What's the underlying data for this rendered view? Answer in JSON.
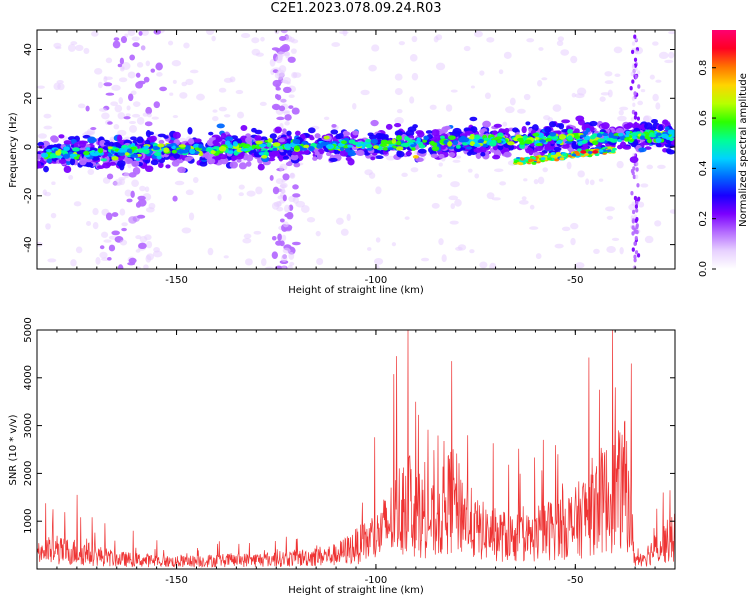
{
  "title": "C2E1.2023.078.09.24.R03",
  "chart_data": [
    {
      "type": "heatmap",
      "xlabel": "Height of straight line (km)",
      "ylabel": "Frequency (Hz)",
      "xlim": [
        -185,
        -25
      ],
      "ylim": [
        -50,
        48
      ],
      "xticks": [
        -150,
        -100,
        -50
      ],
      "yticks": [
        -40,
        -20,
        0,
        20,
        40
      ],
      "colorbar": {
        "label": "Normalized spectral amplitude",
        "range": [
          0.0,
          0.95
        ],
        "ticks": [
          "0.0",
          "0.2",
          "0.4",
          "0.6",
          "0.8"
        ],
        "colormap": [
          "#ffffff",
          "#e7d0ff",
          "#b56cff",
          "#7b00ff",
          "#1800ff",
          "#0068ff",
          "#00d2ff",
          "#00ff96",
          "#2cff00",
          "#b8ff00",
          "#ffd400",
          "#ff7400",
          "#ff0024",
          "#ff0070"
        ]
      },
      "features": [
        {
          "name": "main band",
          "x": [
            -185,
            -25
          ],
          "freq_center_hz": [
            -3,
            5
          ]
        },
        {
          "name": "descending branch",
          "x": [
            -65,
            -40
          ],
          "freq_center_hz": [
            -6,
            -1
          ]
        },
        {
          "name": "vertical stripe",
          "x": [
            -35,
            -35
          ],
          "freq_range_hz": [
            -50,
            48
          ]
        }
      ]
    },
    {
      "type": "line",
      "color": "#ee3333",
      "xlabel": "Height of straight line (km)",
      "ylabel": "SNR (10 * v/v)",
      "xlim": [
        -185,
        -25
      ],
      "ylim": [
        0,
        5000
      ],
      "xticks": [
        -150,
        -100,
        -50
      ],
      "yticks": [
        1000,
        2000,
        3000,
        4000,
        5000
      ],
      "envelope": {
        "x": [
          -185,
          -175,
          -165,
          -150,
          -140,
          -130,
          -120,
          -110,
          -105,
          -100,
          -95,
          -92,
          -90,
          -85,
          -81,
          -75,
          -70,
          -65,
          -60,
          -55,
          -50,
          -45,
          -40,
          -37,
          -35,
          -32,
          -28,
          -25
        ],
        "y": [
          650,
          600,
          350,
          250,
          300,
          320,
          380,
          500,
          800,
          1100,
          1900,
          2600,
          2000,
          1600,
          2500,
          1400,
          1200,
          1100,
          1100,
          1500,
          1600,
          2300,
          2600,
          3000,
          300,
          500,
          900,
          1100
        ]
      },
      "peaks": [
        {
          "x": -181,
          "y": 1250
        },
        {
          "x": -175,
          "y": 1550
        },
        {
          "x": -92,
          "y": 5000
        },
        {
          "x": -90,
          "y": 3500
        },
        {
          "x": -81,
          "y": 4350
        },
        {
          "x": -77,
          "y": 2800
        },
        {
          "x": -58,
          "y": 2700
        },
        {
          "x": -44,
          "y": 3750
        },
        {
          "x": -40,
          "y": 3800
        },
        {
          "x": -36,
          "y": 4300
        },
        {
          "x": -28,
          "y": 1600
        }
      ]
    }
  ]
}
